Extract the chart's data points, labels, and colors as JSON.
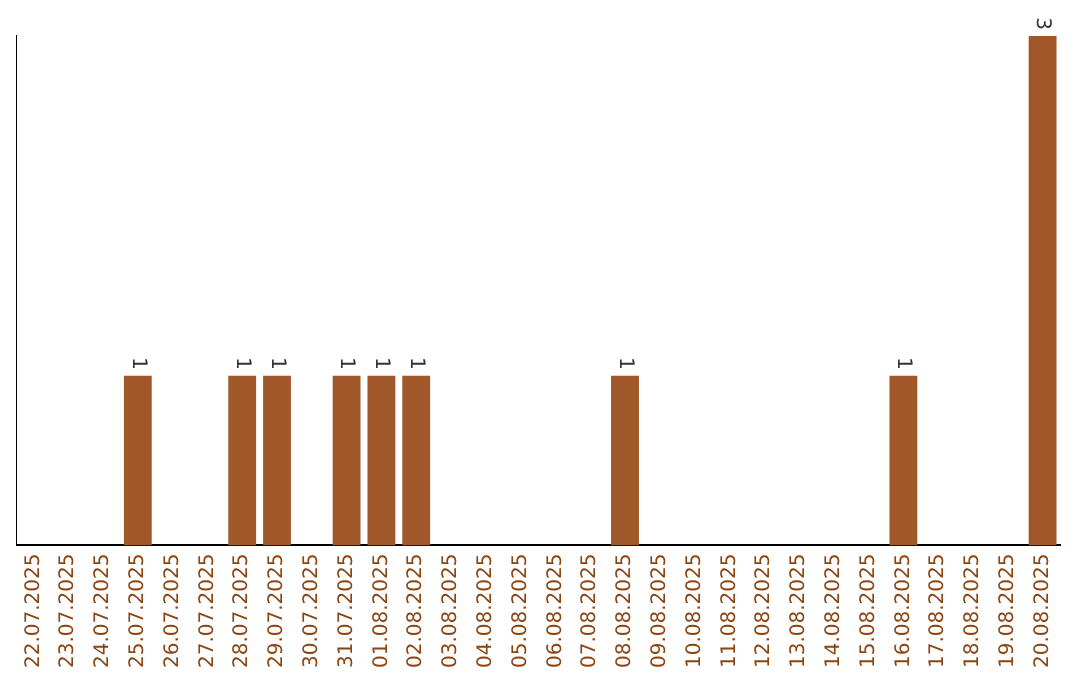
{
  "chart_data": {
    "type": "bar",
    "categories": [
      "22.07.2025",
      "23.07.2025",
      "24.07.2025",
      "25.07.2025",
      "26.07.2025",
      "27.07.2025",
      "28.07.2025",
      "29.07.2025",
      "30.07.2025",
      "31.07.2025",
      "01.08.2025",
      "02.08.2025",
      "03.08.2025",
      "04.08.2025",
      "05.08.2025",
      "06.08.2025",
      "07.08.2025",
      "08.08.2025",
      "09.08.2025",
      "10.08.2025",
      "11.08.2025",
      "12.08.2025",
      "13.08.2025",
      "14.08.2025",
      "15.08.2025",
      "16.08.2025",
      "17.08.2025",
      "18.08.2025",
      "19.08.2025",
      "20.08.2025"
    ],
    "values": [
      0,
      0,
      0,
      1,
      0,
      0,
      1,
      1,
      0,
      1,
      1,
      1,
      0,
      0,
      0,
      0,
      0,
      1,
      0,
      0,
      0,
      0,
      0,
      0,
      0,
      1,
      0,
      0,
      0,
      3
    ],
    "value_labels": [
      null,
      null,
      null,
      "1",
      null,
      null,
      "1",
      "1",
      null,
      "1",
      "1",
      "1",
      null,
      null,
      null,
      null,
      null,
      "1",
      null,
      null,
      null,
      null,
      null,
      null,
      null,
      "1",
      null,
      null,
      null,
      "3"
    ],
    "color": "#a0572a",
    "grid": false,
    "legend": false,
    "tick_labels": "x"
  }
}
